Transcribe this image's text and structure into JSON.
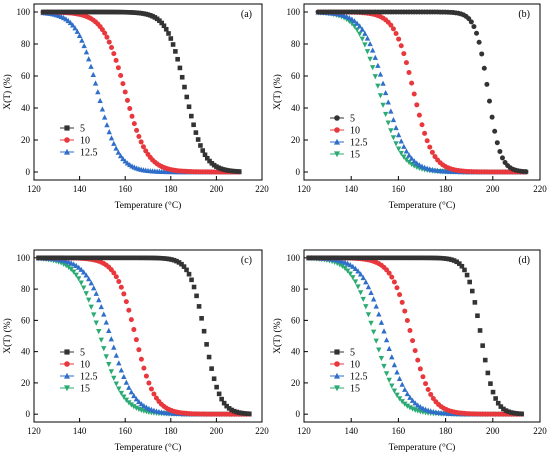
{
  "chart_data": [
    {
      "panel_tag": "(a)",
      "type": "line",
      "xlabel": "Temperature (°C)",
      "ylabel": "X(T) (%)",
      "xlim": [
        120,
        220
      ],
      "ylim": [
        -5,
        105
      ],
      "xticks": [
        "120",
        "140",
        "160",
        "180",
        "200",
        "220"
      ],
      "yticks": [
        "0",
        "20",
        "40",
        "60",
        "80",
        "100"
      ],
      "legend_position": "left-bottom",
      "series": [
        {
          "name": "5",
          "color": "#333333",
          "marker": "square",
          "x_start": 124,
          "x_end": 210,
          "step": 1.0,
          "T_onset": 168,
          "T_end": 205
        },
        {
          "name": "10",
          "color": "#e8383d",
          "marker": "circle",
          "x_start": 124,
          "x_end": 210,
          "step": 1.0,
          "T_onset": 138,
          "T_end": 182
        },
        {
          "name": "12.5",
          "color": "#2f6ec9",
          "marker": "triangle-up",
          "x_start": 124,
          "x_end": 210,
          "step": 1.0,
          "T_onset": 127,
          "T_end": 169
        }
      ]
    },
    {
      "panel_tag": "(b)",
      "type": "line",
      "xlabel": "Temperature (°C)",
      "ylabel": "X(T) (%)",
      "xlim": [
        120,
        220
      ],
      "ylim": [
        -5,
        105
      ],
      "xticks": [
        "120",
        "140",
        "160",
        "180",
        "200",
        "220"
      ],
      "yticks": [
        "0",
        "20",
        "40",
        "60",
        "80",
        "100"
      ],
      "legend_position": "right-bottom",
      "series": [
        {
          "name": "5",
          "color": "#333333",
          "marker": "circle",
          "x_start": 126,
          "x_end": 215,
          "step": 1.1,
          "T_onset": 186,
          "T_end": 210
        },
        {
          "name": "10",
          "color": "#e8383d",
          "marker": "circle",
          "x_start": 126,
          "x_end": 215,
          "step": 1.1,
          "T_onset": 148,
          "T_end": 185
        },
        {
          "name": "12.5",
          "color": "#2f6ec9",
          "marker": "triangle-up",
          "x_start": 126,
          "x_end": 215,
          "step": 1.1,
          "T_onset": 133,
          "T_end": 176
        },
        {
          "name": "15",
          "color": "#2bab73",
          "marker": "triangle-down",
          "x_start": 126,
          "x_end": 215,
          "step": 1.1,
          "T_onset": 131,
          "T_end": 173
        }
      ]
    },
    {
      "panel_tag": "(c)",
      "type": "line",
      "xlabel": "Temperature (°C)",
      "ylabel": "X(T) (%)",
      "xlim": [
        120,
        220
      ],
      "ylim": [
        -5,
        105
      ],
      "xticks": [
        "120",
        "140",
        "160",
        "180",
        "200",
        "220"
      ],
      "yticks": [
        "0",
        "20",
        "40",
        "60",
        "80",
        "100"
      ],
      "legend_position": "left-bottom",
      "series": [
        {
          "name": "5",
          "color": "#333333",
          "marker": "square",
          "x_start": 122,
          "x_end": 215,
          "step": 1.1,
          "T_onset": 180,
          "T_end": 210
        },
        {
          "name": "10",
          "color": "#e8383d",
          "marker": "circle",
          "x_start": 122,
          "x_end": 215,
          "step": 1.1,
          "T_onset": 145,
          "T_end": 184
        },
        {
          "name": "12.5",
          "color": "#2f6ec9",
          "marker": "triangle-up",
          "x_start": 122,
          "x_end": 215,
          "step": 1.1,
          "T_onset": 130,
          "T_end": 177
        },
        {
          "name": "15",
          "color": "#2bab73",
          "marker": "triangle-down",
          "x_start": 122,
          "x_end": 215,
          "step": 1.1,
          "T_onset": 126,
          "T_end": 172
        }
      ]
    },
    {
      "panel_tag": "(d)",
      "type": "line",
      "xlabel": "Temperature (°C)",
      "ylabel": "X(T) (%)",
      "xlim": [
        120,
        220
      ],
      "ylim": [
        -5,
        105
      ],
      "xticks": [
        "120",
        "140",
        "160",
        "180",
        "200",
        "220"
      ],
      "yticks": [
        "0",
        "20",
        "40",
        "60",
        "80",
        "100"
      ],
      "legend_position": "left-bottom",
      "series": [
        {
          "name": "5",
          "color": "#333333",
          "marker": "square",
          "x_start": 122,
          "x_end": 213,
          "step": 1.1,
          "T_onset": 182,
          "T_end": 208
        },
        {
          "name": "10",
          "color": "#e8383d",
          "marker": "circle",
          "x_start": 122,
          "x_end": 213,
          "step": 1.1,
          "T_onset": 146,
          "T_end": 185
        },
        {
          "name": "12.5",
          "color": "#2f6ec9",
          "marker": "triangle-up",
          "x_start": 122,
          "x_end": 213,
          "step": 1.1,
          "T_onset": 132,
          "T_end": 177
        },
        {
          "name": "15",
          "color": "#2bab73",
          "marker": "triangle-down",
          "x_start": 122,
          "x_end": 213,
          "step": 1.1,
          "T_onset": 128,
          "T_end": 172
        }
      ]
    }
  ]
}
